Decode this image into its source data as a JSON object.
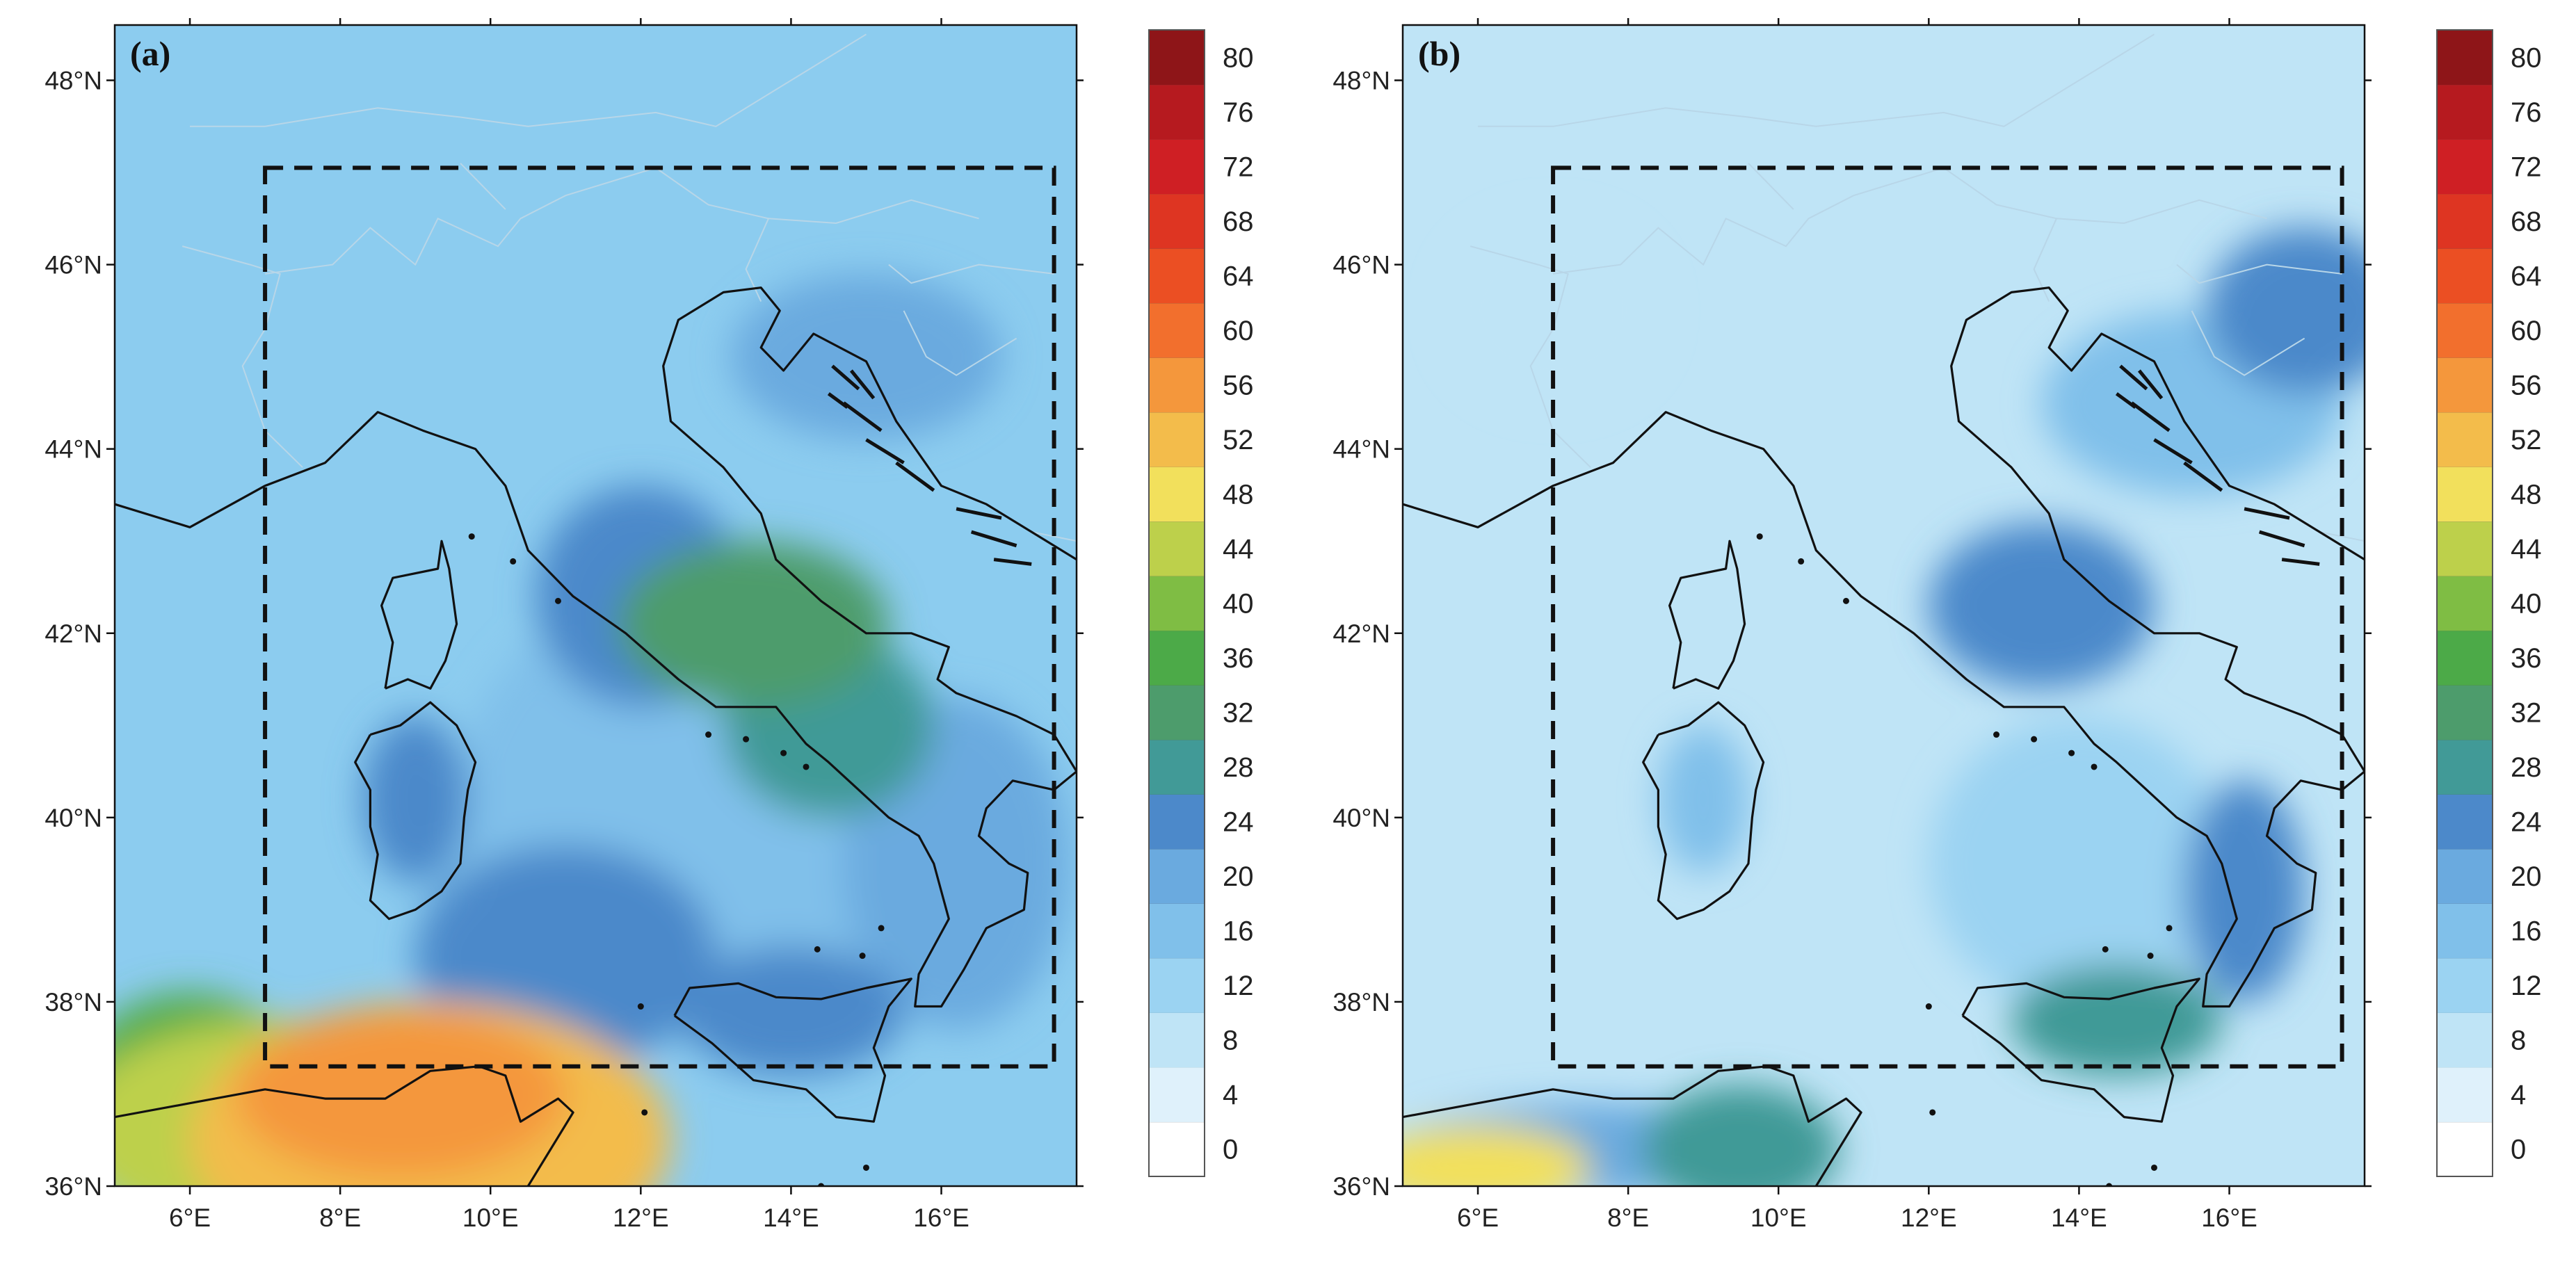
{
  "panels": [
    {
      "label": "(a)",
      "field": {
        "blobs": [
          {
            "lon": 9.2,
            "lat": 36.5,
            "rx": 3.2,
            "ry": 1.5,
            "value": 54
          },
          {
            "lon": 8.8,
            "lat": 37.0,
            "rx": 2.2,
            "ry": 0.9,
            "value": 58
          },
          {
            "lon": 7.0,
            "lat": 36.6,
            "rx": 2.6,
            "ry": 1.2,
            "value": 44
          },
          {
            "lon": 6.0,
            "lat": 36.9,
            "rx": 1.6,
            "ry": 1.2,
            "value": 36
          },
          {
            "lon": 13.5,
            "lat": 42.1,
            "rx": 1.8,
            "ry": 0.9,
            "value": 33
          },
          {
            "lon": 14.5,
            "lat": 41.0,
            "rx": 1.4,
            "ry": 1.0,
            "value": 30
          },
          {
            "lon": 9.0,
            "lat": 40.2,
            "rx": 0.7,
            "ry": 0.9,
            "value": 26
          },
          {
            "lon": 11.0,
            "lat": 38.5,
            "rx": 2.0,
            "ry": 1.2,
            "value": 25
          },
          {
            "lon": 14.0,
            "lat": 37.9,
            "rx": 1.5,
            "ry": 0.7,
            "value": 27
          },
          {
            "lon": 12.0,
            "lat": 42.4,
            "rx": 1.4,
            "ry": 1.2,
            "value": 24
          },
          {
            "lon": 15.0,
            "lat": 45.0,
            "rx": 1.8,
            "ry": 0.9,
            "value": 21
          },
          {
            "lon": 16.2,
            "lat": 39.5,
            "rx": 1.5,
            "ry": 1.8,
            "value": 20
          },
          {
            "lon": 12.5,
            "lat": 40.0,
            "rx": 3.0,
            "ry": 2.5,
            "value": 19
          }
        ]
      }
    },
    {
      "label": "(b)",
      "field": {
        "blobs": [
          {
            "lon": 6.0,
            "lat": 36.2,
            "rx": 1.5,
            "ry": 0.45,
            "value": 48
          },
          {
            "lon": 9.5,
            "lat": 36.4,
            "rx": 1.3,
            "ry": 0.7,
            "value": 30
          },
          {
            "lon": 7.5,
            "lat": 36.4,
            "rx": 2.6,
            "ry": 0.5,
            "value": 22
          },
          {
            "lon": 14.5,
            "lat": 37.8,
            "rx": 1.4,
            "ry": 0.6,
            "value": 31
          },
          {
            "lon": 16.2,
            "lat": 39.2,
            "rx": 0.8,
            "ry": 1.2,
            "value": 27
          },
          {
            "lon": 13.5,
            "lat": 42.3,
            "rx": 1.5,
            "ry": 0.9,
            "value": 25
          },
          {
            "lon": 17.0,
            "lat": 45.5,
            "rx": 1.3,
            "ry": 0.9,
            "value": 24
          },
          {
            "lon": 9.0,
            "lat": 40.2,
            "rx": 0.6,
            "ry": 0.8,
            "value": 19
          },
          {
            "lon": 15.5,
            "lat": 44.5,
            "rx": 2.0,
            "ry": 1.0,
            "value": 17
          },
          {
            "lon": 14.0,
            "lat": 39.5,
            "rx": 2.0,
            "ry": 1.6,
            "value": 15
          },
          {
            "lon": 7.0,
            "lat": 45.5,
            "rx": 1.4,
            "ry": 1.0,
            "value": 10
          }
        ]
      }
    }
  ],
  "map": {
    "lon_range": [
      5,
      17.8
    ],
    "lat_range": [
      36,
      48.6
    ],
    "lon_ticks": [
      "6°E",
      "8°E",
      "10°E",
      "12°E",
      "14°E",
      "16°E"
    ],
    "lon_tick_values": [
      6,
      8,
      10,
      12,
      14,
      16
    ],
    "lat_ticks": [
      "48°N",
      "46°N",
      "44°N",
      "42°N",
      "40°N",
      "38°N",
      "36°N"
    ],
    "lat_tick_values": [
      48,
      46,
      44,
      42,
      40,
      38,
      36
    ],
    "inner_domain": {
      "lon": [
        7,
        17.5
      ],
      "lat": [
        37.3,
        47.05
      ]
    }
  },
  "colorbar": {
    "labels": [
      "80",
      "76",
      "72",
      "68",
      "64",
      "60",
      "56",
      "52",
      "48",
      "44",
      "40",
      "36",
      "32",
      "28",
      "24",
      "20",
      "16",
      "12",
      "8",
      "4",
      "0"
    ],
    "levels": [
      0,
      4,
      8,
      12,
      16,
      20,
      24,
      28,
      32,
      36,
      40,
      44,
      48,
      52,
      56,
      60,
      64,
      68,
      72,
      76,
      80
    ],
    "colors": [
      "#ffffff",
      "#dff1fb",
      "#bfe4f6",
      "#9bd3f2",
      "#80c0ea",
      "#6aaadf",
      "#4c89ca",
      "#419a97",
      "#4d9c6c",
      "#4caa48",
      "#7fbd44",
      "#bdd04b",
      "#f2e05c",
      "#f3bc4b",
      "#f4973c",
      "#f26f2d",
      "#eb4f23",
      "#de3522",
      "#cf1f24",
      "#b61a1f",
      "#8e1518"
    ]
  }
}
